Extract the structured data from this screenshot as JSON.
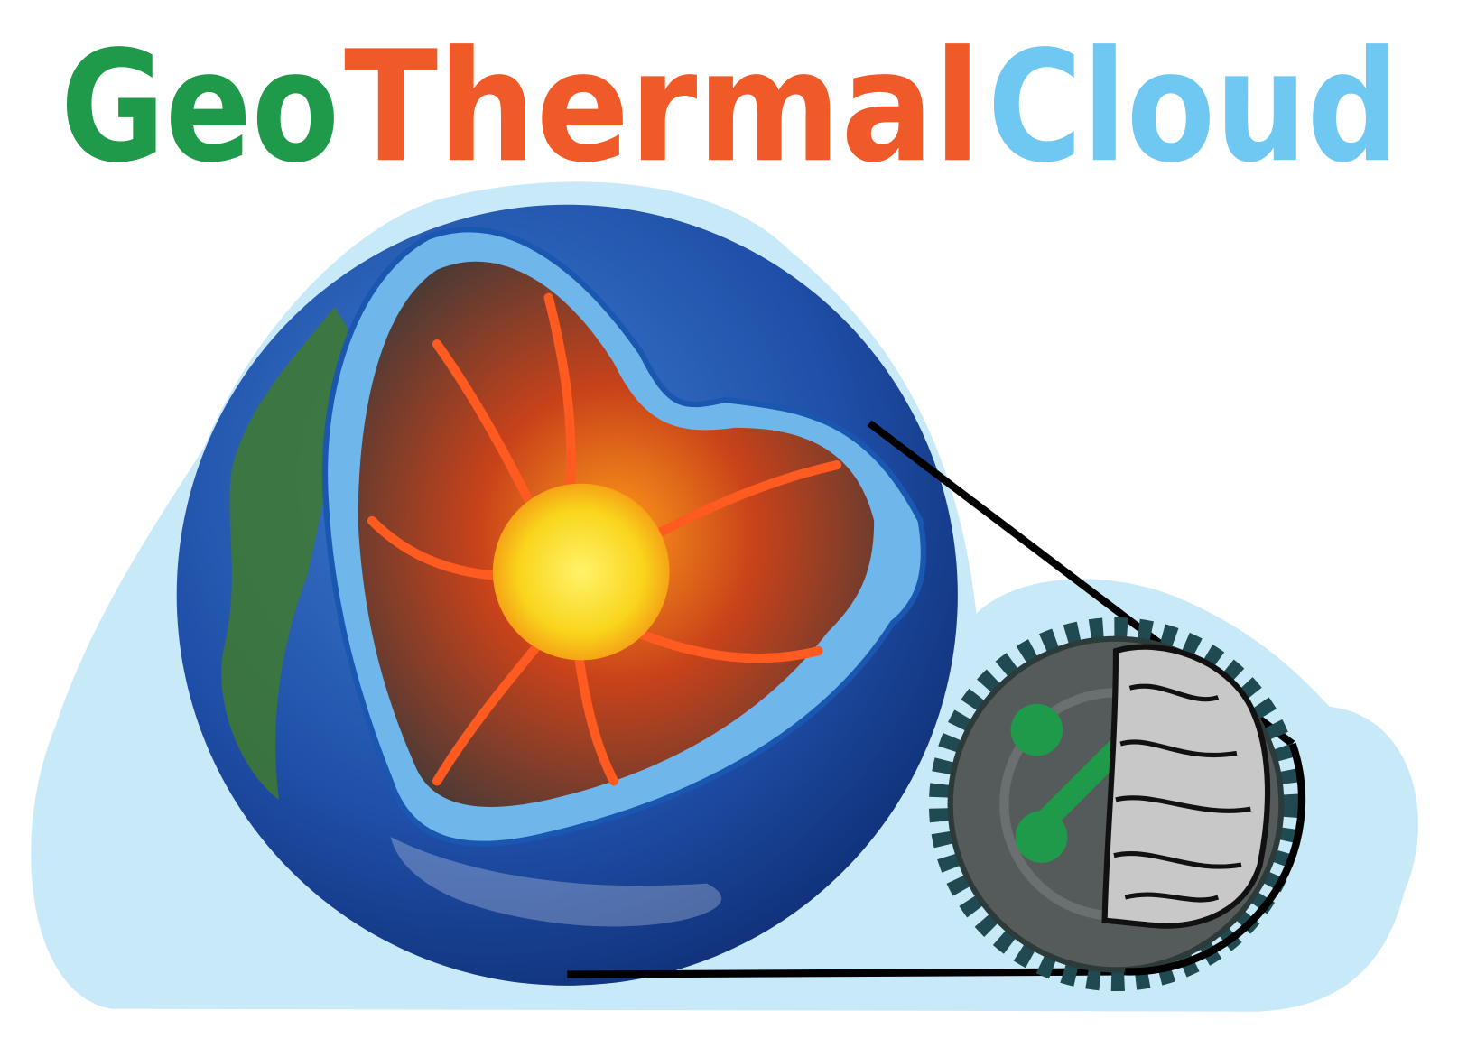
{
  "logo": {
    "title": [
      "Geo",
      "Thermal",
      "Cloud"
    ]
  }
}
